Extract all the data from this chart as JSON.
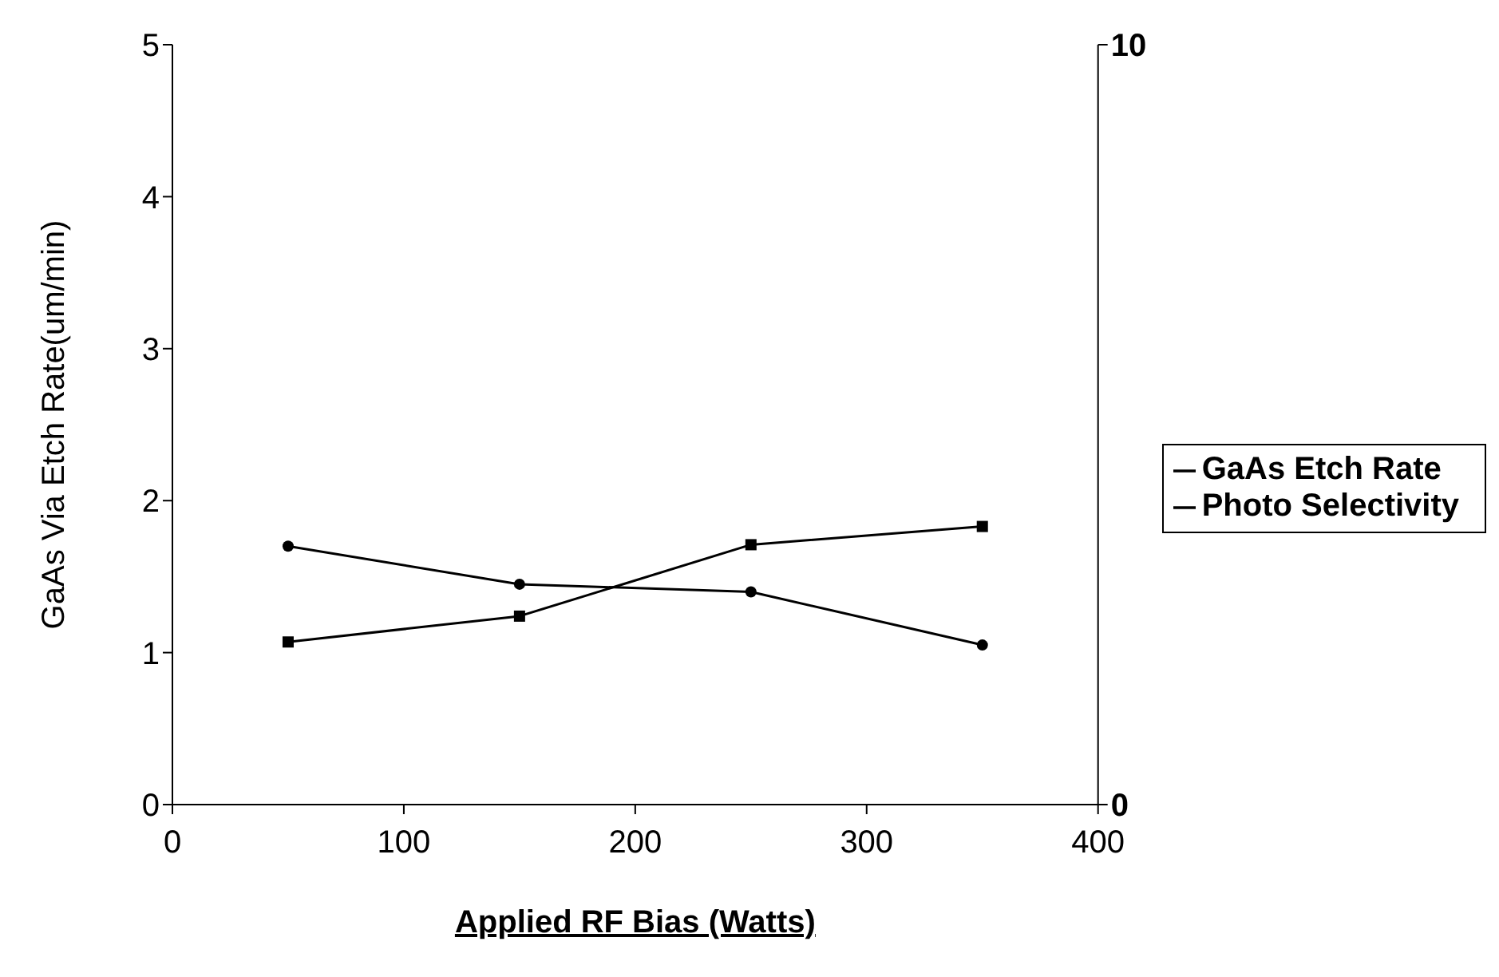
{
  "chart_data": {
    "type": "line",
    "xlabel": "Applied RF Bias (Watts)",
    "ylabel": "GaAs Via Etch Rate(um/min)",
    "x": [
      50,
      150,
      250,
      350
    ],
    "series": [
      {
        "name": "GaAs Etch Rate",
        "color": "#000000",
        "marker": "square",
        "values": [
          1.07,
          1.24,
          1.71,
          1.83
        ]
      },
      {
        "name": "Photo Selectivity",
        "color": "#000000",
        "marker": "circle",
        "axis": "y2",
        "values": [
          3.4,
          2.9,
          2.8,
          2.1
        ]
      }
    ],
    "xlim": [
      0,
      400
    ],
    "xticks": [
      0,
      100,
      200,
      300,
      400
    ],
    "ylim": [
      0,
      5
    ],
    "yticks": [
      0,
      1,
      2,
      3,
      4,
      5
    ],
    "y2lim": [
      0,
      10
    ],
    "y2ticks": [
      0,
      10
    ],
    "grid": false,
    "legend": "right",
    "line_style": "solid"
  }
}
